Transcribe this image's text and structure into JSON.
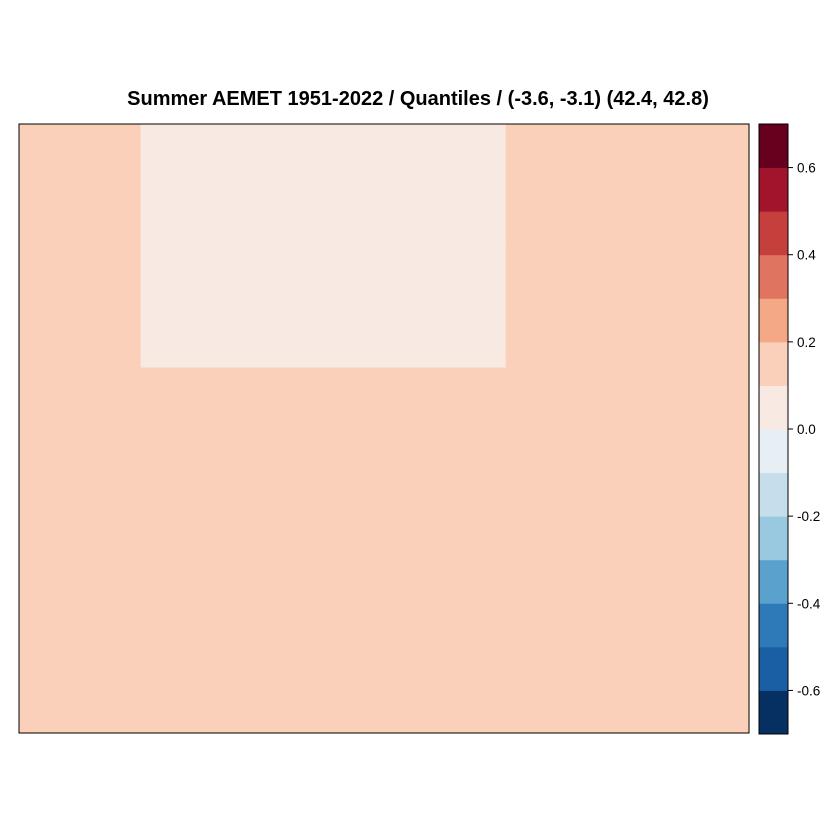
{
  "chart_data": {
    "type": "heatmap",
    "title": "Summer AEMET 1951-2022 / Quantiles /  (-3.6, -3.1) (42.4, 42.8)",
    "xlabel": "",
    "ylabel": "",
    "grid": false,
    "legend_placement": "right",
    "colorbar": {
      "range": [
        -0.7,
        0.7
      ],
      "levels": [
        -0.7,
        -0.6,
        -0.5,
        -0.4,
        -0.3,
        -0.2,
        -0.1,
        0.0,
        0.1,
        0.2,
        0.3,
        0.4,
        0.5,
        0.6,
        0.7
      ],
      "colors": [
        "#053061",
        "#1a5ea4",
        "#2e7ab8",
        "#5aa1ce",
        "#99c8e1",
        "#c6deec",
        "#e7eff5",
        "#f8e9e2",
        "#fad0ba",
        "#f4a885",
        "#df7461",
        "#c53f3d",
        "#a2142b",
        "#67001f"
      ],
      "tick_values": [
        -0.6,
        -0.4,
        -0.2,
        0.0,
        0.2,
        0.4,
        0.6
      ],
      "tick_labels": [
        "-0.6",
        "-0.4",
        "-0.2",
        "0.0",
        "0.2",
        "0.4",
        "0.6"
      ]
    },
    "grid_cols": 6,
    "grid_rows": 5,
    "values": [
      [
        0.15,
        0.05,
        0.05,
        0.05,
        0.15,
        0.15
      ],
      [
        0.15,
        0.05,
        0.05,
        0.05,
        0.15,
        0.15
      ],
      [
        0.15,
        0.15,
        0.15,
        0.15,
        0.15,
        0.15
      ],
      [
        0.15,
        0.15,
        0.15,
        0.15,
        0.15,
        0.15
      ],
      [
        0.15,
        0.15,
        0.15,
        0.15,
        0.15,
        0.15
      ]
    ]
  }
}
